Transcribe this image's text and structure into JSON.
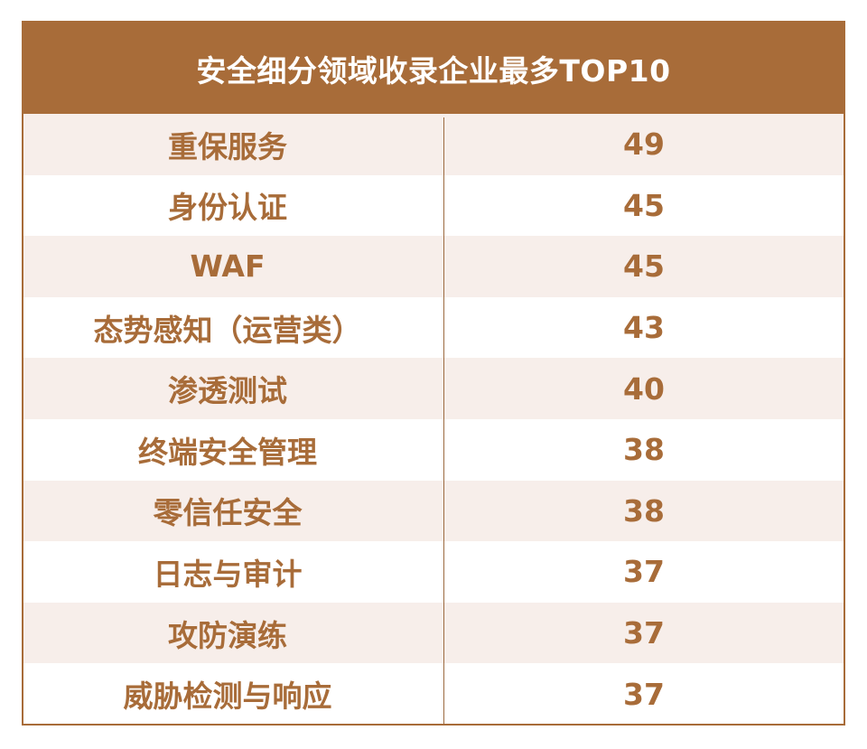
{
  "table": {
    "title": "安全细分领域收录企业最多TOP10",
    "rows": [
      {
        "name": "重保服务",
        "count": "49"
      },
      {
        "name": "身份认证",
        "count": "45"
      },
      {
        "name": "WAF",
        "count": "45"
      },
      {
        "name": "态势感知（运营类）",
        "count": "43"
      },
      {
        "name": "渗透测试",
        "count": "40"
      },
      {
        "name": "终端安全管理",
        "count": "38"
      },
      {
        "name": "零信任安全",
        "count": "38"
      },
      {
        "name": "日志与审计",
        "count": "37"
      },
      {
        "name": "攻防演练",
        "count": "37"
      },
      {
        "name": "威胁检测与响应",
        "count": "37"
      }
    ],
    "colors": {
      "accent": "#a86c39",
      "row_shade": "#f7eeea",
      "text_on_accent": "#ffffff"
    }
  }
}
